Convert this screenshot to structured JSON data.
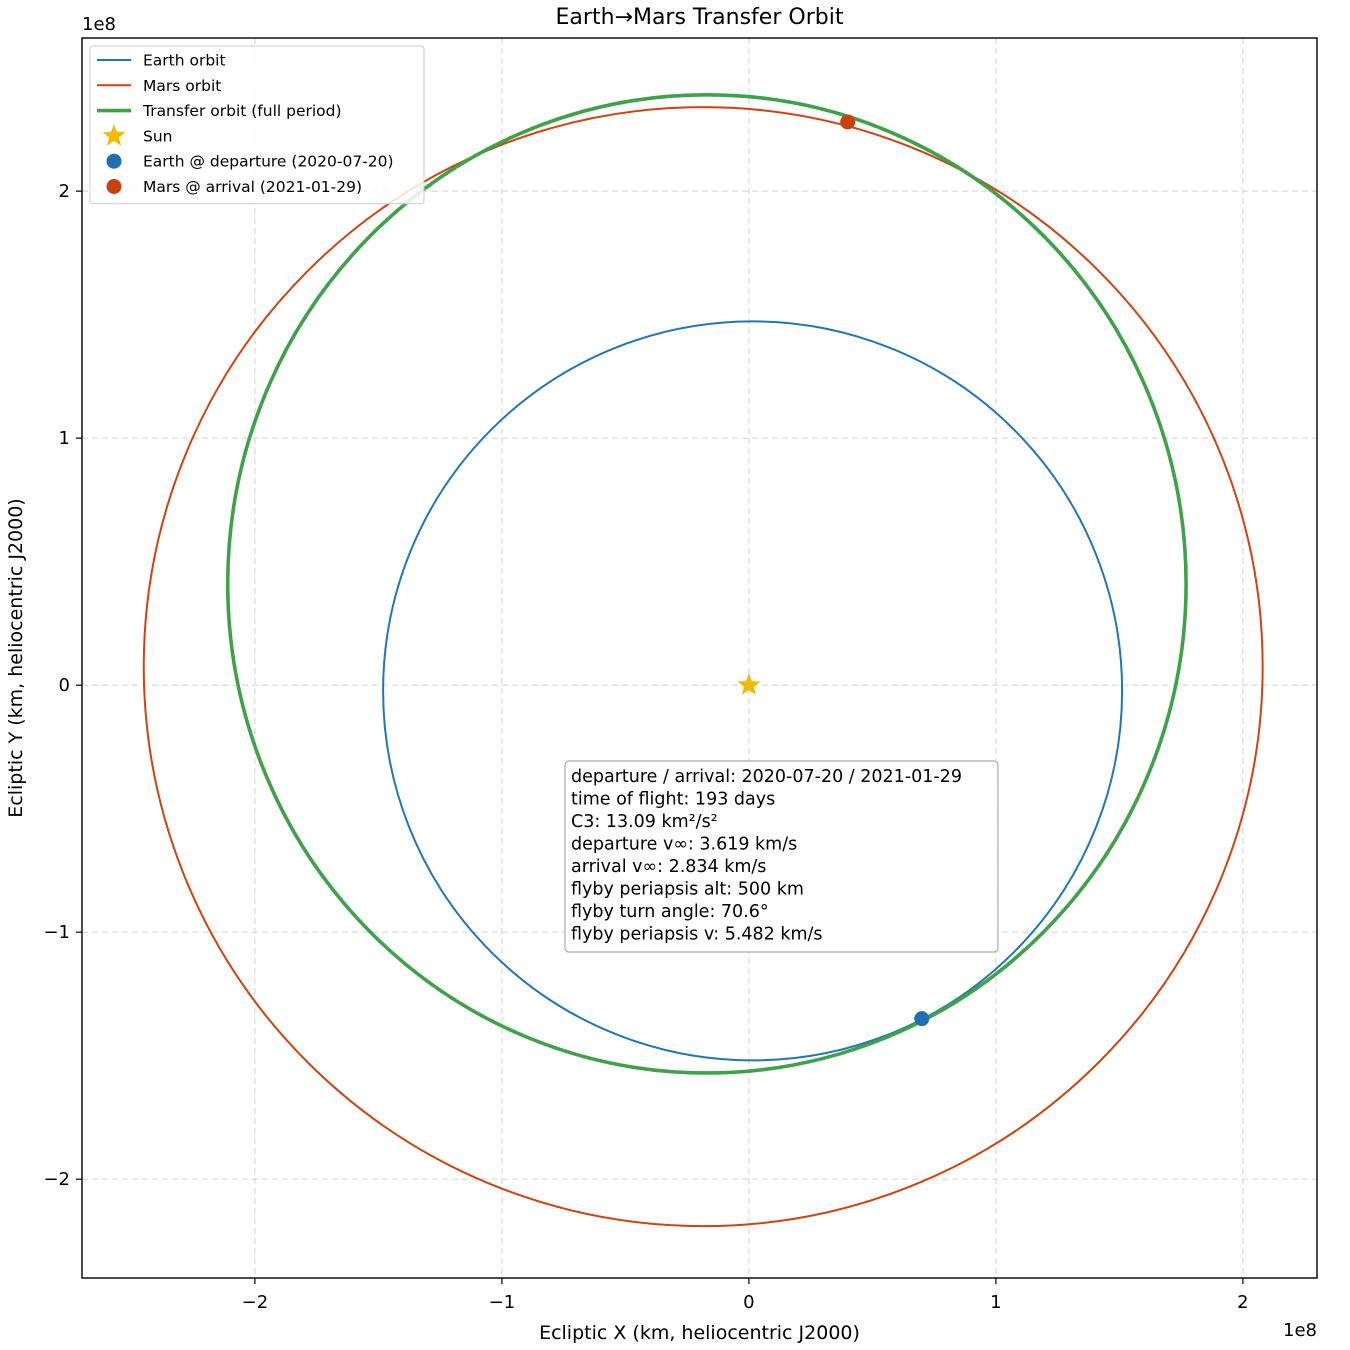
{
  "chart_data": {
    "type": "line",
    "title": "Earth→Mars Transfer Orbit",
    "xlabel": "Ecliptic X (km, heliocentric J2000)",
    "ylabel": "Ecliptic Y (km, heliocentric J2000)",
    "x_offset_text": "1e8",
    "y_offset_text": "1e8",
    "xlim": [
      -270000000.0,
      230000000.0
    ],
    "ylim": [
      -240000000.0,
      262000000.0
    ],
    "x_ticks": [
      -200000000.0,
      -100000000.0,
      0,
      100000000.0,
      200000000.0
    ],
    "x_tick_labels": [
      "−2",
      "−1",
      "0",
      "1",
      "2"
    ],
    "y_ticks": [
      -200000000.0,
      -100000000.0,
      0,
      100000000.0,
      200000000.0
    ],
    "y_tick_labels": [
      "−2",
      "−1",
      "0",
      "1",
      "2"
    ],
    "grid": true,
    "legend_position": "top-left",
    "series": [
      {
        "name": "Earth orbit",
        "kind": "ellipse",
        "color": "#1f77b4",
        "center": [
          1500000.0,
          -2300000.0
        ],
        "semi_axes": [
          149600000.0,
          149600000.0
        ]
      },
      {
        "name": "Mars orbit",
        "kind": "ellipse",
        "color": "#d1420f",
        "center": [
          -18500000.0,
          7500000.0
        ],
        "semi_axes": [
          226500000.0,
          226500000.0
        ]
      },
      {
        "name": "Transfer orbit (full period)",
        "kind": "ellipse",
        "color": "#3fa24a",
        "center": [
          -17000000.0,
          41000000.0
        ],
        "semi_axes": [
          194000000.0,
          198000000.0
        ]
      }
    ],
    "markers": [
      {
        "name": "Sun",
        "shape": "star",
        "color": "#f5b800",
        "x": 0,
        "y": 0
      },
      {
        "name": "Earth @ departure (2020-07-20)",
        "shape": "circle",
        "color": "#1f6fb5",
        "x": 70000000.0,
        "y": -135000000.0
      },
      {
        "name": "Mars @ arrival (2021-01-29)",
        "shape": "circle",
        "color": "#c8410e",
        "x": 40000000.0,
        "y": 228000000.0
      }
    ],
    "annotation_lines": [
      "departure / arrival: 2020-07-20 / 2021-01-29",
      "time of flight: 193 days",
      "C3: 13.09 km²/s²",
      "departure v∞: 3.619 km/s",
      "arrival v∞: 2.834 km/s",
      "flyby periapsis alt: 500 km",
      "flyby turn angle: 70.6°",
      "flyby periapsis v: 5.482 km/s"
    ]
  }
}
